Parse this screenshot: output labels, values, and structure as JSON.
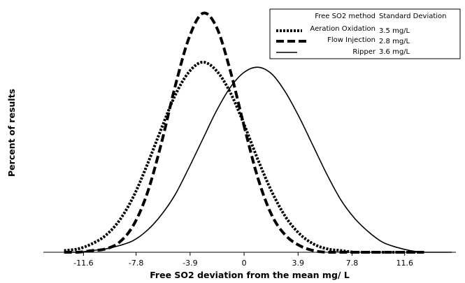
{
  "chart_data": {
    "type": "line",
    "title": "",
    "xlabel": "Free SO2 deviation from the mean mg/ L",
    "ylabel": "Percent of results",
    "x_ticks": [
      "-11.6",
      "-7.8",
      "-3.9",
      "0",
      "3.9",
      "7.8",
      "11.6"
    ],
    "x_tick_values": [
      -11.6,
      -7.8,
      -3.9,
      0,
      3.9,
      7.8,
      11.6
    ],
    "xlim": [
      -14.5,
      15.3
    ],
    "ylim": [
      0,
      0.145
    ],
    "grid": false,
    "legend_position": "top-right",
    "legend_headers": [
      "Free SO2 method",
      "Standard Deviation"
    ],
    "series": [
      {
        "name": "Aeration Oxidation",
        "std_dev_label": "3.5 mg/L",
        "line_style": "dotted-thick",
        "x": [
          -13.0,
          -12.0,
          -11.0,
          -10.0,
          -9.0,
          -8.0,
          -7.0,
          -6.0,
          -5.0,
          -4.0,
          -3.0,
          -2.0,
          -1.0,
          0.0,
          1.0,
          2.0,
          3.0,
          4.0,
          5.0,
          6.0,
          7.0,
          8.0,
          9.0,
          10.0,
          11.0,
          12.0,
          13.0
        ],
        "y": [
          0.001,
          0.002,
          0.005,
          0.01,
          0.019,
          0.033,
          0.052,
          0.073,
          0.093,
          0.107,
          0.113,
          0.108,
          0.095,
          0.076,
          0.055,
          0.036,
          0.021,
          0.011,
          0.005,
          0.002,
          0.001,
          0.0,
          0.0,
          0.0,
          0.0,
          0.0,
          0.0
        ]
      },
      {
        "name": "Flow Injection",
        "std_dev_label": "2.8 mg/L",
        "line_style": "dashed-thick",
        "x": [
          -13.0,
          -12.0,
          -11.0,
          -10.0,
          -9.0,
          -8.0,
          -7.0,
          -6.0,
          -5.0,
          -4.0,
          -3.0,
          -2.0,
          -1.0,
          0.0,
          1.0,
          2.0,
          3.0,
          4.0,
          5.0,
          6.0,
          7.0,
          8.0,
          9.0,
          10.0,
          11.0,
          12.0,
          13.0
        ],
        "y": [
          0.0,
          0.0,
          0.001,
          0.002,
          0.006,
          0.016,
          0.035,
          0.064,
          0.098,
          0.127,
          0.142,
          0.134,
          0.108,
          0.075,
          0.044,
          0.022,
          0.01,
          0.004,
          0.001,
          0.0,
          0.0,
          0.0,
          0.0,
          0.0,
          0.0,
          0.0,
          0.0
        ]
      },
      {
        "name": "Ripper",
        "std_dev_label": "3.6 mg/L",
        "line_style": "solid",
        "x": [
          -13.0,
          -12.0,
          -11.0,
          -10.0,
          -9.0,
          -8.0,
          -7.0,
          -6.0,
          -5.0,
          -4.0,
          -3.0,
          -2.0,
          -1.0,
          0.0,
          1.0,
          2.0,
          3.0,
          4.0,
          5.0,
          6.0,
          7.0,
          8.0,
          9.0,
          10.0,
          11.0,
          12.0,
          13.0,
          14.0,
          15.0
        ],
        "y": [
          0.0,
          0.0,
          0.001,
          0.002,
          0.004,
          0.007,
          0.013,
          0.022,
          0.034,
          0.05,
          0.067,
          0.084,
          0.098,
          0.107,
          0.11,
          0.106,
          0.095,
          0.08,
          0.063,
          0.046,
          0.031,
          0.02,
          0.012,
          0.006,
          0.003,
          0.001,
          0.0,
          0.0,
          0.0
        ]
      }
    ]
  }
}
